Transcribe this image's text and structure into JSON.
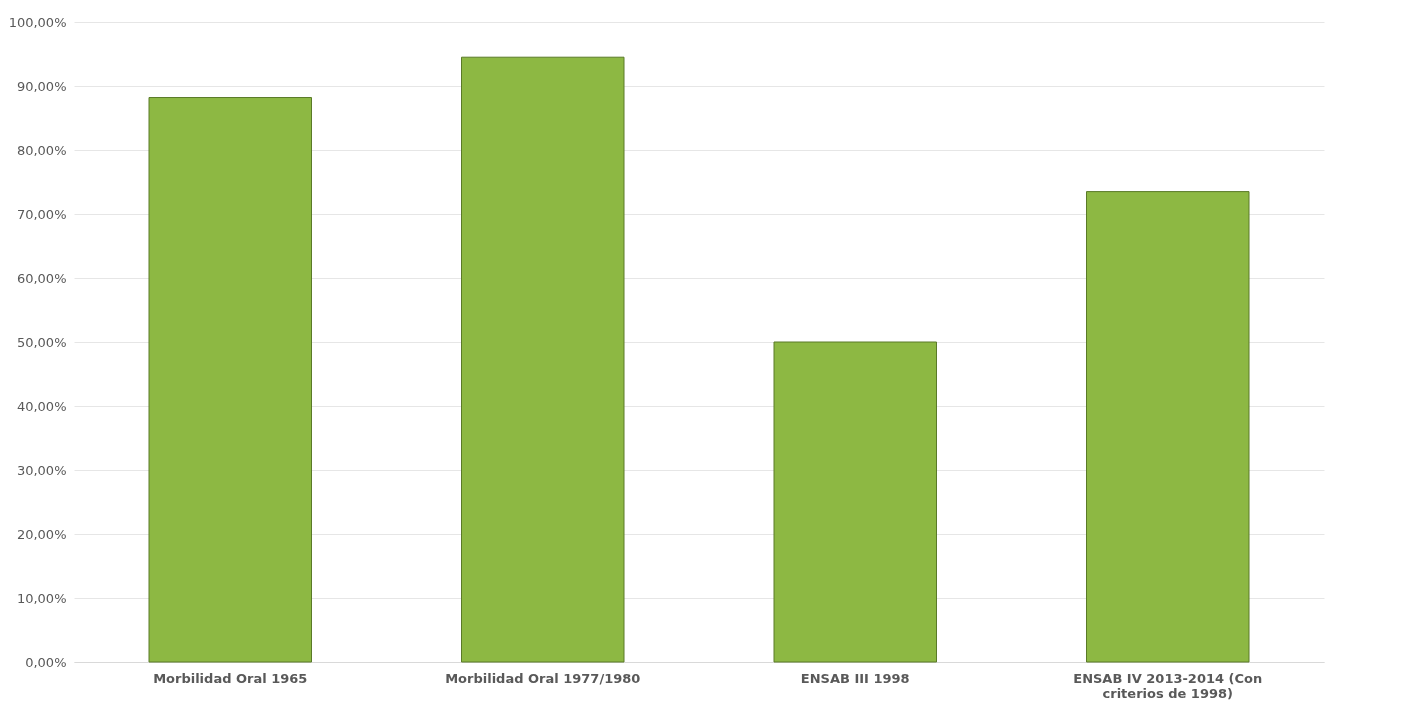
{
  "chart_data": {
    "type": "bar",
    "categories": [
      "Morbilidad Oral 1965",
      "Morbilidad Oral 1977/1980",
      "ENSAB III 1998",
      "ENSAB IV 2013-2014 (Con criterios de 1998)"
    ],
    "values": [
      88.2,
      94.5,
      50.0,
      73.5
    ],
    "color": "#8db843",
    "ylim": [
      0,
      100
    ],
    "yticks": [
      {
        "value": 0,
        "label": "0,00%"
      },
      {
        "value": 10,
        "label": "10,00%"
      },
      {
        "value": 20,
        "label": "20,00%"
      },
      {
        "value": 30,
        "label": "30,00%"
      },
      {
        "value": 40,
        "label": "40,00%"
      },
      {
        "value": 50,
        "label": "50,00%"
      },
      {
        "value": 60,
        "label": "60,00%"
      },
      {
        "value": 70,
        "label": "70,00%"
      },
      {
        "value": 80,
        "label": "80,00%"
      },
      {
        "value": 90,
        "label": "90,00%"
      },
      {
        "value": 100,
        "label": "100,00%"
      }
    ],
    "grid": "y"
  }
}
